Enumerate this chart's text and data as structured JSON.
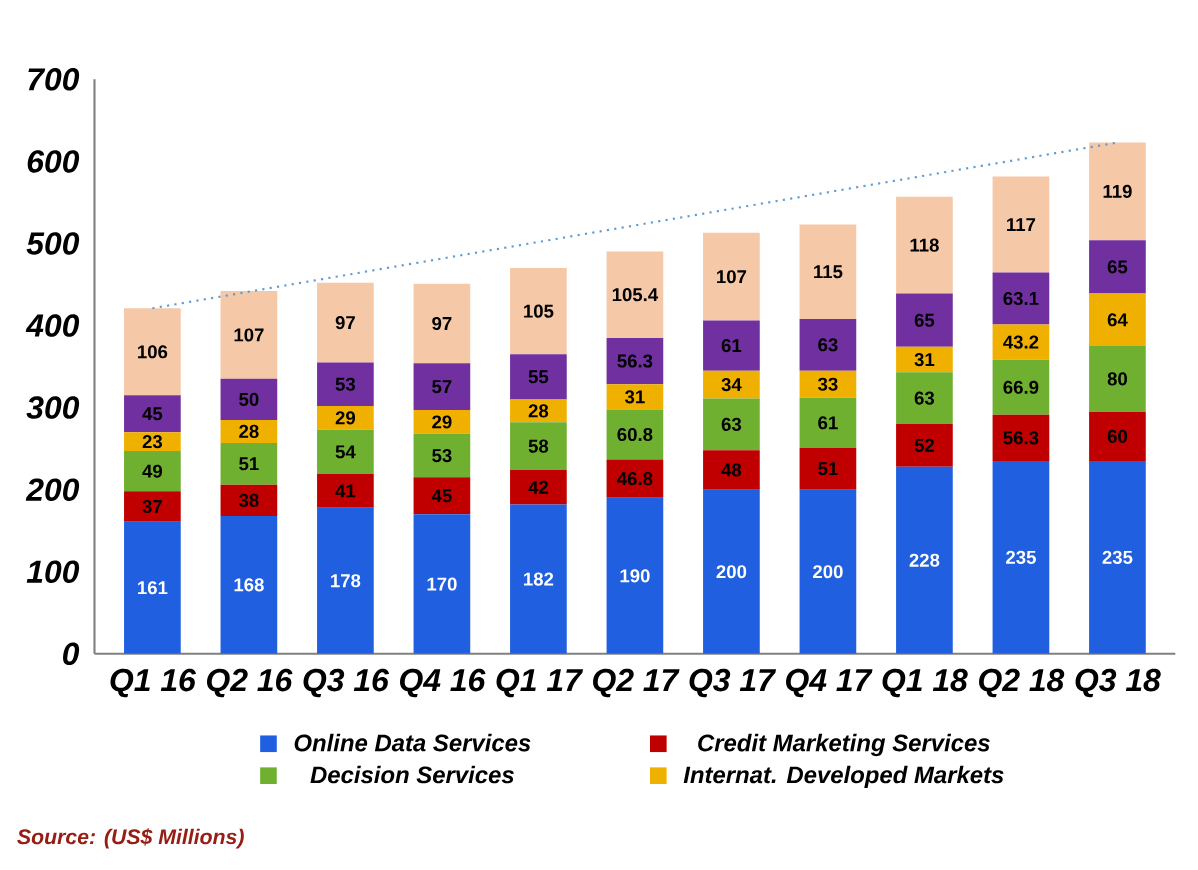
{
  "chart_data": {
    "type": "bar",
    "stacked": true,
    "data_labels": true,
    "legend": "bottom",
    "grid": false,
    "categories": [
      "Q1 16",
      "Q2 16",
      "Q3 16",
      "Q4 16",
      "Q1 17",
      "Q2 17",
      "Q3 17",
      "Q4 17",
      "Q1 18",
      "Q2 18",
      "Q3 18"
    ],
    "ylim": [
      0,
      700
    ],
    "yticks": [
      0,
      100,
      200,
      300,
      400,
      500,
      600,
      700
    ],
    "series": [
      {
        "name": "Online Data Services",
        "color": "#1f5fe0",
        "values": [
          161,
          168,
          178,
          170,
          182,
          190,
          200,
          200,
          228,
          235,
          235
        ]
      },
      {
        "name": "Credit Marketing Services",
        "color": "#c00000",
        "values": [
          37,
          38,
          41,
          45,
          42,
          46.8,
          48,
          51,
          52,
          56.3,
          60
        ]
      },
      {
        "name": "Decision Services",
        "color": "#70b030",
        "values": [
          49,
          51,
          54,
          53,
          58,
          60.8,
          63,
          61,
          63,
          66.9,
          80
        ]
      },
      {
        "name": "Internat. Developed Markets",
        "color": "#f0b000",
        "values": [
          23,
          28,
          29,
          29,
          28,
          31,
          34,
          33,
          31,
          43.2,
          64
        ]
      },
      {
        "color": "#7030a0",
        "values": [
          45,
          50,
          53,
          57,
          55,
          56.3,
          61,
          63,
          65,
          63.1,
          65
        ]
      },
      {
        "color": "#f5c8a8",
        "values": [
          106,
          107,
          97,
          97,
          105,
          105.4,
          107,
          115,
          118,
          117,
          119
        ]
      },
      {
        "type": "line",
        "color": "#5b9bd5",
        "line_style": "dotted",
        "x": [
          "Q1 16",
          "Q3 18"
        ],
        "values": [
          421,
          623
        ],
        "value_labels": [
          null,
          null
        ]
      }
    ],
    "annotations": [
      "Source: (US$ Millions)"
    ]
  }
}
